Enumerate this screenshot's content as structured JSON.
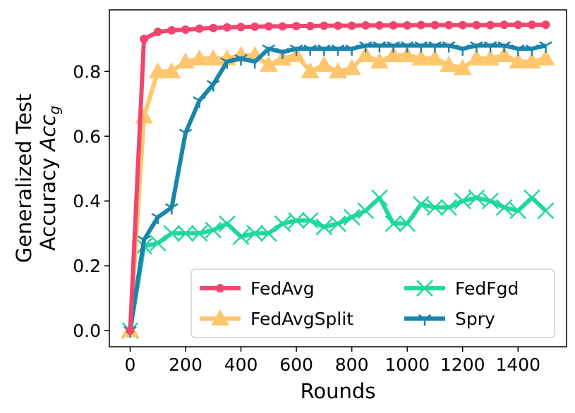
{
  "chart_data": {
    "type": "line",
    "title": "",
    "xlabel": "Rounds",
    "ylabel_line1": "Generalized Test",
    "ylabel_line2_prefix": "Accuracy ",
    "ylabel_line2_math": "Acc",
    "ylabel_line2_subscript": "g",
    "xlim": [
      -75,
      1575
    ],
    "ylim": [
      -0.05,
      0.99
    ],
    "xticks": [
      0,
      200,
      400,
      600,
      800,
      1000,
      1200,
      1400
    ],
    "xtick_labels": [
      "0",
      "200",
      "400",
      "600",
      "800",
      "1000",
      "1200",
      "1400"
    ],
    "yticks": [
      0.0,
      0.2,
      0.4,
      0.6,
      0.8
    ],
    "ytick_labels": [
      "0.0",
      "0.2",
      "0.4",
      "0.6",
      "0.8"
    ],
    "grid": false,
    "legend_position": "lower-right",
    "series": [
      {
        "name": "FedAvg",
        "color": "#f0466e",
        "marker": "circle",
        "x": [
          0,
          50,
          100,
          150,
          200,
          250,
          300,
          350,
          400,
          450,
          500,
          550,
          600,
          650,
          700,
          750,
          800,
          850,
          900,
          950,
          1000,
          1050,
          1100,
          1150,
          1200,
          1250,
          1300,
          1350,
          1400,
          1450,
          1500
        ],
        "y": [
          0.0,
          0.9,
          0.922,
          0.927,
          0.929,
          0.932,
          0.934,
          0.936,
          0.937,
          0.938,
          0.939,
          0.939,
          0.94,
          0.94,
          0.941,
          0.941,
          0.941,
          0.942,
          0.942,
          0.942,
          0.942,
          0.943,
          0.943,
          0.943,
          0.943,
          0.943,
          0.943,
          0.944,
          0.944,
          0.944,
          0.944
        ]
      },
      {
        "name": "FedAvgSplit",
        "color": "#ffc66d",
        "marker": "triangle",
        "x": [
          0,
          50,
          100,
          150,
          200,
          250,
          300,
          350,
          400,
          450,
          500,
          550,
          600,
          650,
          700,
          750,
          800,
          850,
          900,
          950,
          1000,
          1050,
          1100,
          1150,
          1200,
          1250,
          1300,
          1350,
          1400,
          1450,
          1500
        ],
        "y": [
          0.0,
          0.66,
          0.8,
          0.8,
          0.83,
          0.84,
          0.84,
          0.84,
          0.85,
          0.85,
          0.82,
          0.84,
          0.85,
          0.8,
          0.82,
          0.8,
          0.81,
          0.85,
          0.83,
          0.85,
          0.85,
          0.84,
          0.84,
          0.82,
          0.81,
          0.84,
          0.84,
          0.85,
          0.83,
          0.83,
          0.84
        ]
      },
      {
        "name": "FedFgd",
        "color": "#1ed99b",
        "marker": "x",
        "x": [
          0,
          50,
          100,
          150,
          200,
          250,
          300,
          350,
          400,
          450,
          500,
          550,
          600,
          650,
          700,
          750,
          800,
          850,
          900,
          950,
          1000,
          1050,
          1100,
          1150,
          1200,
          1250,
          1300,
          1350,
          1400,
          1450,
          1500
        ],
        "y": [
          0.0,
          0.26,
          0.27,
          0.3,
          0.3,
          0.3,
          0.31,
          0.33,
          0.29,
          0.3,
          0.3,
          0.33,
          0.34,
          0.34,
          0.32,
          0.33,
          0.35,
          0.37,
          0.41,
          0.33,
          0.33,
          0.39,
          0.38,
          0.38,
          0.4,
          0.41,
          0.4,
          0.38,
          0.37,
          0.41,
          0.37
        ]
      },
      {
        "name": "Spry",
        "color": "#1a85ac",
        "marker": "tri",
        "x": [
          0,
          50,
          100,
          150,
          200,
          250,
          300,
          350,
          400,
          450,
          500,
          550,
          600,
          650,
          700,
          750,
          800,
          850,
          900,
          950,
          1000,
          1050,
          1100,
          1150,
          1200,
          1250,
          1300,
          1350,
          1400,
          1450,
          1500
        ],
        "y": [
          0.0,
          0.28,
          0.35,
          0.38,
          0.61,
          0.71,
          0.76,
          0.83,
          0.84,
          0.83,
          0.87,
          0.86,
          0.87,
          0.87,
          0.87,
          0.87,
          0.87,
          0.88,
          0.88,
          0.88,
          0.88,
          0.88,
          0.88,
          0.88,
          0.87,
          0.88,
          0.88,
          0.88,
          0.87,
          0.87,
          0.88
        ]
      }
    ]
  }
}
